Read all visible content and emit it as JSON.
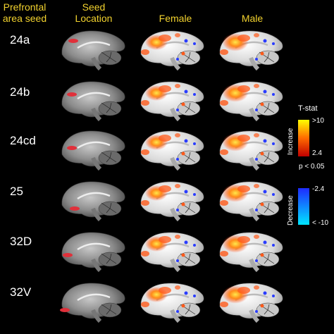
{
  "headers": {
    "seed_area": "Prefrontal\narea seed",
    "seed_location": "Seed\nLocation",
    "female": "Female",
    "male": "Male"
  },
  "rows": [
    {
      "label": "24a"
    },
    {
      "label": "24b"
    },
    {
      "label": "24cd"
    },
    {
      "label": "25"
    },
    {
      "label": "32D"
    },
    {
      "label": "32V"
    }
  ],
  "colorbar": {
    "title": "T-stat",
    "increase_label": "Increase",
    "increase_max": ">10",
    "increase_min": "2.4",
    "pvalue": "p < 0.05",
    "decrease_label": "Decrease",
    "decrease_max": "-2.4",
    "decrease_min": "< -10",
    "colors": {
      "inc_top": "#ffff00",
      "inc_mid": "#ff6a00",
      "inc_bot": "#c00000",
      "dec_top": "#1f2bff",
      "dec_bot": "#00e5ff"
    }
  },
  "colors": {
    "seed": "#e0303a",
    "activation_hot": "#ffd23a",
    "activation": "#ff5a1a",
    "deactivation": "#2a3cff"
  }
}
